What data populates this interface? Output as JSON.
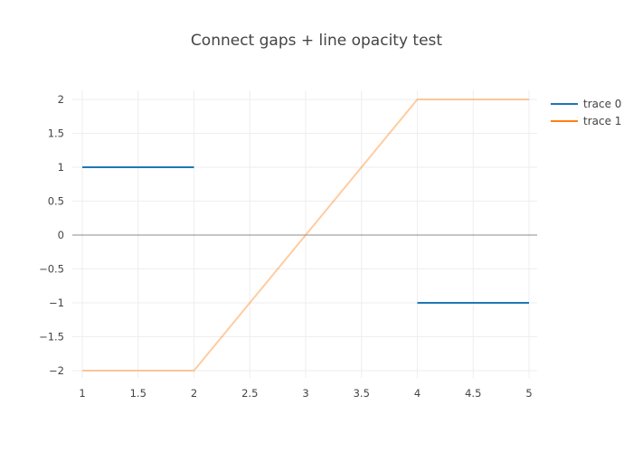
{
  "chart_data": {
    "type": "line",
    "title": "Connect gaps + line opacity test",
    "xlabel": "",
    "ylabel": "",
    "xlim": [
      1,
      5
    ],
    "ylim": [
      -2,
      2
    ],
    "x_ticks": [
      "1",
      "1.5",
      "2",
      "2.5",
      "3",
      "3.5",
      "4",
      "4.5",
      "5"
    ],
    "y_ticks": [
      "2",
      "1.5",
      "1",
      "0.5",
      "0",
      "−0.5",
      "−1",
      "−1.5",
      "−2"
    ],
    "grid": true,
    "zero_line": true,
    "legend_position": "top-right",
    "series": [
      {
        "name": "trace 0",
        "color": "#1f77b4",
        "opacity": 1,
        "segments": [
          [
            [
              1,
              1
            ],
            [
              2,
              1
            ]
          ],
          [
            [
              4,
              -1
            ],
            [
              5,
              -1
            ]
          ]
        ]
      },
      {
        "name": "trace 1",
        "color": "#ff7f0e",
        "opacity": 0.4,
        "segments": [
          [
            [
              1,
              -2
            ],
            [
              2,
              -2
            ],
            [
              4,
              2
            ],
            [
              5,
              2
            ]
          ]
        ]
      }
    ]
  }
}
